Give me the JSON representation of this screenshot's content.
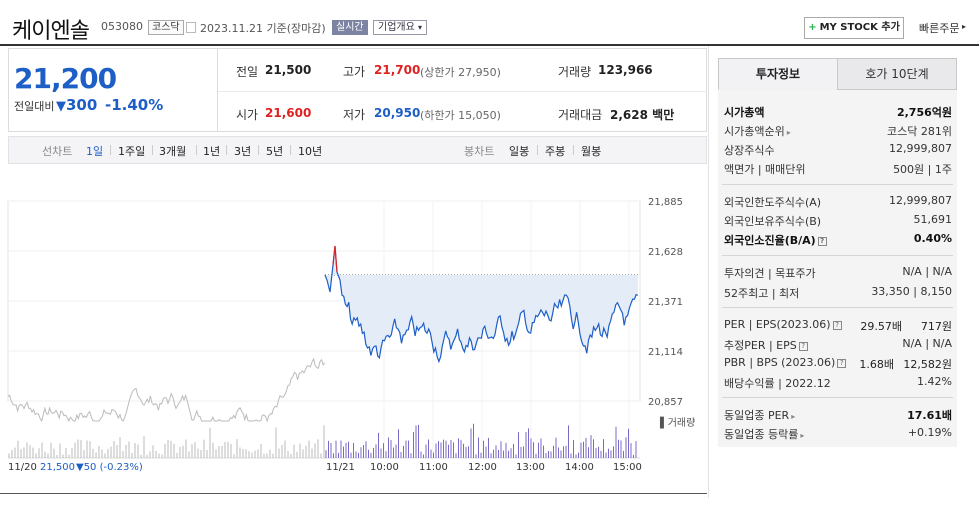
{
  "header": {
    "name": "케이엔솔",
    "code": "053080",
    "market": "코스닥",
    "date": "2023.11.21 기준(장마감)",
    "realtime": "실시간",
    "corp_info": "기업개요",
    "mystock": "MY STOCK 추가",
    "quick_order": "빠른주문"
  },
  "price": {
    "current": "21,200",
    "diff_label": "전일대비",
    "diff_arrow": "▼",
    "diff_value": "300",
    "diff_rate": "-1.40%"
  },
  "summary": {
    "prev_close_label": "전일",
    "prev_close": "21,500",
    "high_label": "고가",
    "high": "21,700",
    "upper_limit": "(상한가 27,950)",
    "volume_label": "거래량",
    "volume": "123,966",
    "open_label": "시가",
    "open": "21,600",
    "low_label": "저가",
    "low": "20,950",
    "lower_limit": "(하한가 15,050)",
    "amount_label": "거래대금",
    "amount": "2,628",
    "amount_unit": "백만"
  },
  "toolbar": {
    "line_label": "선차트",
    "line_items": [
      "1일",
      "1주일",
      "3개월",
      "1년",
      "3년",
      "5년",
      "10년"
    ],
    "candle_label": "봉차트",
    "candle_items": [
      "일봉",
      "주봉",
      "월봉"
    ]
  },
  "chart": {
    "y_ticks": [
      "21,885",
      "21,628",
      "21,371",
      "21,114",
      "20,857"
    ],
    "volume_label": "거래량",
    "x_ticks": [
      "11/21",
      "10:00",
      "11:00",
      "12:00",
      "13:00",
      "14:00",
      "15:00"
    ],
    "prev_day_label": "11/20",
    "prev_day_value": "21,500",
    "prev_day_change": "▼50 (-0.23%)",
    "colors": {
      "line": "#1d5ec7",
      "prev_line": "#bbbbbb",
      "up": "#e02121",
      "fill": "#e4ecf8",
      "volume": "#7b68c9"
    }
  },
  "right_panel": {
    "tabs": [
      "투자정보",
      "호가 10단계"
    ],
    "rows": [
      {
        "label": "시가총액",
        "value": "2,756억원"
      },
      {
        "label": "시가총액순위",
        "value": "코스닥 281위"
      },
      {
        "label": "상장주식수",
        "value": "12,999,807"
      },
      {
        "label": "액면가 | 매매단위",
        "value": "500원 | 1주"
      },
      {
        "label": "외국인한도주식수(A)",
        "value": "12,999,807"
      },
      {
        "label": "외국인보유주식수(B)",
        "value": "51,691"
      },
      {
        "label": "외국인소진율(B/A)",
        "value": "0.40%"
      },
      {
        "label": "투자의견 | 목표주가",
        "value": "N/A | N/A"
      },
      {
        "label": "52주최고 | 최저",
        "value": "33,350 | 8,150"
      },
      {
        "label": "PER | EPS(2023.06)",
        "value1": "29.57배",
        "value2": "717원"
      },
      {
        "label": "추정PER | EPS",
        "value": "N/A | N/A"
      },
      {
        "label": "PBR | BPS (2023.06)",
        "value1": "1.68배",
        "value2": "12,582원"
      },
      {
        "label": "배당수익률 | 2022.12",
        "value": "1.42%"
      },
      {
        "label": "동일업종 PER",
        "value": "17.61배"
      },
      {
        "label": "동일업종 등락률",
        "value": "+0.19%"
      }
    ]
  }
}
